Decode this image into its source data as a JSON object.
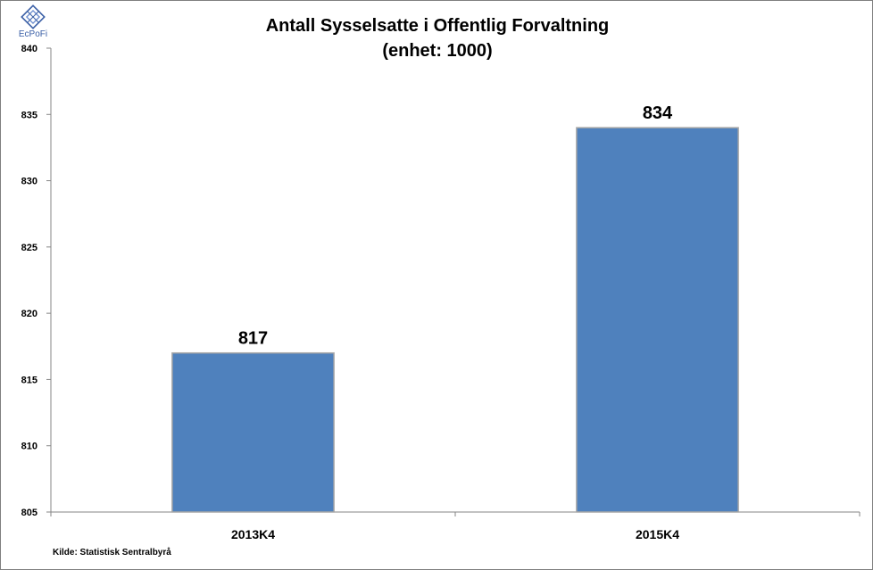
{
  "logo": {
    "text": "EcPoFi",
    "color": "#3a5fa6"
  },
  "chart_data": {
    "type": "bar",
    "title": "Antall Sysselsatte i Offentlig Forvaltning",
    "subtitle": "(enhet: 1000)",
    "categories": [
      "2013K4",
      "2015K4"
    ],
    "values": [
      817,
      834
    ],
    "data_labels": [
      "817",
      "834"
    ],
    "ylim": [
      805,
      840
    ],
    "yticks": [
      805,
      810,
      815,
      820,
      825,
      830,
      835,
      840
    ],
    "xlabel": "",
    "ylabel": "",
    "grid": false,
    "legend": "none",
    "bar_color": "#4f81bd",
    "bar_border_color": "#a6a6a6"
  },
  "source": "Kilde: Statistisk Sentralbyrå"
}
